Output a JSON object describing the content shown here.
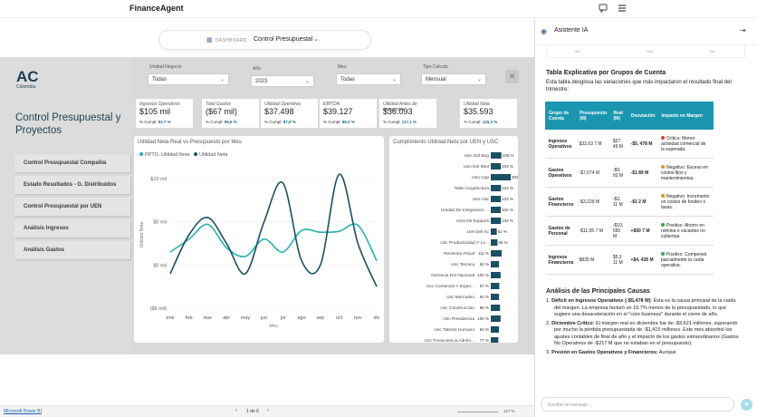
{
  "app": {
    "brand": "FinanceAgent"
  },
  "header": {
    "dashboard_label": "DASHBOARD",
    "report_name": "Control Presupuestal"
  },
  "report": {
    "logo": "AC",
    "logo_sub": "Colombia",
    "title": "Control Presupuestal y Proyectos",
    "nav": [
      "Control Presupuestal Compañía",
      "Estado Resultados - G. Distribuidos",
      "Control Presupuestal por UEN",
      "Análisis Ingresos",
      "Análisis Gastos"
    ],
    "filters": [
      {
        "label": "Unidad Negocio",
        "value": "Todas"
      },
      {
        "label": "Año",
        "value": "2023"
      },
      {
        "label": "Mes",
        "value": "Todas"
      },
      {
        "label": "Tipo Calculo",
        "value": "Mensual"
      }
    ],
    "kpis": [
      {
        "title": "Ingresos Operativos",
        "value": "$105 mil",
        "pct_label": "% Cumpl:",
        "pct": "92,7 %"
      },
      {
        "title": "Total Gastos",
        "value": "($67 mil)",
        "pct_label": "% Cumpl:",
        "pct": "95,6 %"
      },
      {
        "title": "Utilidad Operativa",
        "value": "$37.498",
        "pct_label": "% Cumpl:",
        "pct": "87,8 %"
      },
      {
        "title": "EBITDA",
        "value": "$39.127",
        "pct_label": "% Cumpl:",
        "pct": "88,3 %"
      },
      {
        "title": "Utilidad Antes de Impuestos",
        "value": "$36.093",
        "pct_label": "% Cumpl:",
        "pct": "117,1 %"
      },
      {
        "title": "Utilidad Neta",
        "value": "$35.593",
        "pct_label": "% Cumpl:",
        "pct": "125,3 %"
      }
    ],
    "line_chart_title": "Utilidad Neta Real vs Presupuesto por Mes",
    "bar_chart_title": "Cumplimiento Utilidad Neta por UEN y USC",
    "page": "1 de 6",
    "zoom": "117 %",
    "footer_link": "Microsoft Power BI"
  },
  "chart_data": [
    {
      "type": "line",
      "title": "Utilidad Neta Real vs Presupuesto por Mes",
      "xlabel": "Mes",
      "ylabel": "Utilidad Neta",
      "categories": [
        "ene",
        "feb",
        "mar",
        "abr",
        "may",
        "jun",
        "jul",
        "ago",
        "sep",
        "oct",
        "nov",
        "dic"
      ],
      "y_ticks": [
        "($5 mil)",
        "$0 mil",
        "$5 mil",
        "$10 mil"
      ],
      "ylim": [
        -5,
        12
      ],
      "series": [
        {
          "name": "PPTO. Utilidad Neta",
          "color": "#26b3b0",
          "values": [
            1.5,
            3.0,
            4.7,
            2.0,
            1.0,
            3.0,
            1.5,
            4.0,
            3.8,
            3.9,
            4.6,
            0.5
          ]
        },
        {
          "name": "Utilidad Neta",
          "color": "#1b4f63",
          "values": [
            -1.0,
            3.5,
            5.5,
            2.5,
            -1.0,
            5.0,
            9.5,
            0.5,
            0.0,
            10.5,
            2.5,
            -2.5
          ]
        }
      ],
      "legend": "top-left"
    },
    {
      "type": "bar",
      "title": "Cumplimiento Utilidad Neta por UEN y USC",
      "categories": [
        "Uen Del Bog",
        "Uen Del Med",
        "Uen Cpp",
        "Taller Arquitectura",
        "Uen Alor",
        "Unidad De Integracion ...",
        "Area De Equipos",
        "Uen Del Sc",
        "Usc Productividad Y Le...",
        "Revisoria Fiscal",
        "Usc Tecnica",
        "Gerencia Del Nacional",
        "Usc Comercial Y Exper...",
        "Usc Mercadeo",
        "Usc Construccion",
        "Usc Presidencia",
        "Usc Talento Humano",
        "Usc Financiera & Admin..."
      ],
      "value_labels": [
        "108 %",
        "103 %",
        "203 %",
        "104 %",
        "103 %",
        "102 %",
        "103 %",
        "61 %",
        "68 %",
        "111 %",
        "84 %",
        "100 %",
        "87 %",
        "84 %",
        "95 %",
        "100 %",
        "84 %",
        "77 %"
      ],
      "values": [
        108,
        103,
        203,
        104,
        103,
        102,
        103,
        61,
        68,
        111,
        84,
        100,
        87,
        84,
        95,
        100,
        84,
        77
      ]
    }
  ],
  "assistant": {
    "title": "Asistente IA",
    "mini_axis": [
      "Oct",
      "Nov",
      "Dic"
    ],
    "table_heading": "Tabla Explicativa por Grupos de Cuenta",
    "table_intro": "Esta tabla desglosa las variaciones que más impactaron el resultado final del trimestre:",
    "table_headers": [
      "Grupo de Cuenta",
      "Presupuesto (M)",
      "Real (M)",
      "Desviación",
      "Impacto en Margen"
    ],
    "table_rows": [
      {
        "grupo": "Ingresos Operativos",
        "ppto": "$32,63 7 M",
        "real": "$27, 49 M",
        "desv": "-$5, 478 M",
        "impacto": "Crítico: Menor actividad comercial de la esperada.",
        "color": "#e03c3c"
      },
      {
        "grupo": "Gastos Operativos",
        "ppto": "-$7,674 M",
        "real": "-$9, 93 M",
        "desv": "-$1 89 M",
        "impacto": "Negativo: Exceso en costos fijos y mantenimientos.",
        "color": "#f08c1e"
      },
      {
        "grupo": "Gastos Financieros",
        "ppto": "-$3,229 M",
        "real": "-$3, 11 M",
        "desv": "-$1 2 M",
        "impacto": "Negativo: Incremento en costos de fondeo o tasas.",
        "color": "#f08c1e"
      },
      {
        "grupo": "Gastos de Personal",
        "ppto": "-$11,05 7 M",
        "real": "-$10, 550 M",
        "desv": "+$50 7 M",
        "impacto": "Positivo: Ahorro en nómina o vacantes no cubiertas.",
        "color": "#2fa84f"
      },
      {
        "grupo": "Ingresos Financieros",
        "ppto": "$835 M",
        "real": "$5,3 11 M",
        "desv": "+$4, 435 M",
        "impacto": "Positivo: Compensó parcialmente la caída operativa.",
        "color": "#2fa84f"
      }
    ],
    "analysis_heading": "Análisis de las Principales Causas",
    "causes": [
      {
        "n": "1.",
        "bold": "Déficit en Ingresos Operativos (-$5,478 M)",
        "text": ": Esta es la causa principal de la caída del margen. La empresa facturó un 16.7% menos de lo presupuestado, lo que sugiere una desaceleración en el \"core business\" durante el cierre de año."
      },
      {
        "n": "2.",
        "bold": "Diciembre Crítico:",
        "text": " El margen real en diciembre fue de -$3,621 millones, superando por mucho la pérdida presupuestada de -$1,415 millones. Este mes absorbió los ajustes contables de final de año y el impacto de los gastos extraordinarios (Gastos No Operativos de -$217 M que no estaban en el presupuesto)."
      },
      {
        "n": "3.",
        "bold": "Presión en Gastos Operativos y Financieros:",
        "text": " Aunque"
      }
    ],
    "input_placeholder": "Escribe un mensaje..."
  }
}
